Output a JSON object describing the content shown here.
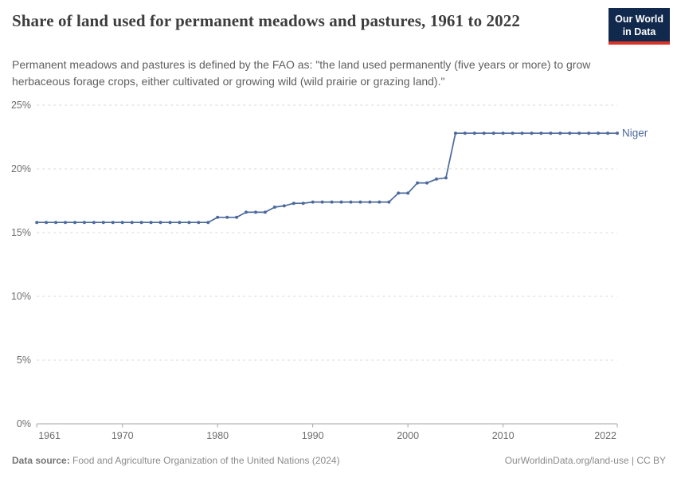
{
  "header": {
    "title": "Share of land used for permanent meadows and pastures, 1961 to 2022",
    "subtitle": "Permanent meadows and pastures is defined by the FAO as: \"the land used permanently (five years or more) to grow herbaceous forage crops, either cultivated or growing wild (wild prairie or grazing land).\"",
    "logo": {
      "line1": "Our World",
      "line2": "in Data",
      "bg_color": "#12294e",
      "accent_color": "#d8352a"
    }
  },
  "chart_data": {
    "type": "line",
    "title": "Share of land used for permanent meadows and pastures, 1961 to 2022",
    "xlabel": "",
    "ylabel": "",
    "ylim": [
      0,
      25
    ],
    "yticks": [
      0,
      5,
      10,
      15,
      20,
      25
    ],
    "ytick_suffix": "%",
    "xticks": [
      1961,
      1970,
      1980,
      1990,
      2000,
      2010,
      2022
    ],
    "grid": true,
    "gridline_color": "#dadada",
    "axis_color": "#a5a5a5",
    "color": "#4c6a9c",
    "legend_position": "end-of-line-label",
    "x": [
      1961,
      1962,
      1963,
      1964,
      1965,
      1966,
      1967,
      1968,
      1969,
      1970,
      1971,
      1972,
      1973,
      1974,
      1975,
      1976,
      1977,
      1978,
      1979,
      1980,
      1981,
      1982,
      1983,
      1984,
      1985,
      1986,
      1987,
      1988,
      1989,
      1990,
      1991,
      1992,
      1993,
      1994,
      1995,
      1996,
      1997,
      1998,
      1999,
      2000,
      2001,
      2002,
      2003,
      2004,
      2005,
      2006,
      2007,
      2008,
      2009,
      2010,
      2011,
      2012,
      2013,
      2014,
      2015,
      2016,
      2017,
      2018,
      2019,
      2020,
      2021,
      2022
    ],
    "series": [
      {
        "name": "Niger",
        "values": [
          15.8,
          15.8,
          15.8,
          15.8,
          15.8,
          15.8,
          15.8,
          15.8,
          15.8,
          15.8,
          15.8,
          15.8,
          15.8,
          15.8,
          15.8,
          15.8,
          15.8,
          15.8,
          15.8,
          16.2,
          16.2,
          16.2,
          16.6,
          16.6,
          16.6,
          17.0,
          17.1,
          17.3,
          17.3,
          17.4,
          17.4,
          17.4,
          17.4,
          17.4,
          17.4,
          17.4,
          17.4,
          17.4,
          18.1,
          18.1,
          18.9,
          18.9,
          19.2,
          19.3,
          22.8,
          22.8,
          22.8,
          22.8,
          22.8,
          22.8,
          22.8,
          22.8,
          22.8,
          22.8,
          22.8,
          22.8,
          22.8,
          22.8,
          22.8,
          22.8,
          22.8,
          22.8
        ]
      }
    ]
  },
  "footer": {
    "source_label": "Data source:",
    "source": "Food and Agriculture Organization of the United Nations (2024)",
    "link": "OurWorldinData.org/land-use | CC BY"
  }
}
